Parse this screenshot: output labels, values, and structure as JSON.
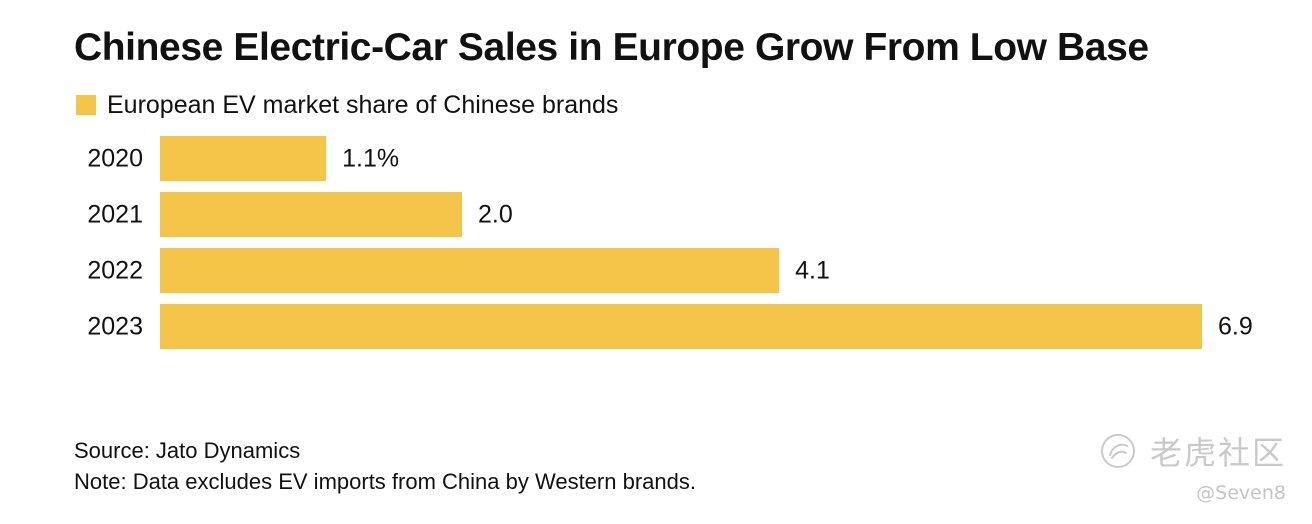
{
  "title": "Chinese Electric-Car Sales in Europe Grow From Low Base",
  "legend": {
    "label": "European EV market share of Chinese brands",
    "color": "#f5c54a"
  },
  "chart_data": {
    "type": "bar",
    "orientation": "horizontal",
    "title": "Chinese Electric-Car Sales in Europe Grow From Low Base",
    "categories": [
      "2020",
      "2021",
      "2022",
      "2023"
    ],
    "series": [
      {
        "name": "European EV market share of Chinese brands",
        "values": [
          1.1,
          2.0,
          4.1,
          6.9
        ],
        "value_labels": [
          "1.1%",
          "2.0",
          "4.1",
          "6.9"
        ],
        "color": "#f5c54a"
      }
    ],
    "xlabel": "",
    "ylabel": "",
    "xlim": [
      0,
      6.9
    ],
    "grid": false,
    "legend_position": "top-left"
  },
  "footer": {
    "source": "Source: Jato Dynamics",
    "note": "Note: Data excludes EV imports from China by Western brands."
  },
  "watermark": {
    "text": "老虎社区",
    "handle": "@Seven8"
  }
}
